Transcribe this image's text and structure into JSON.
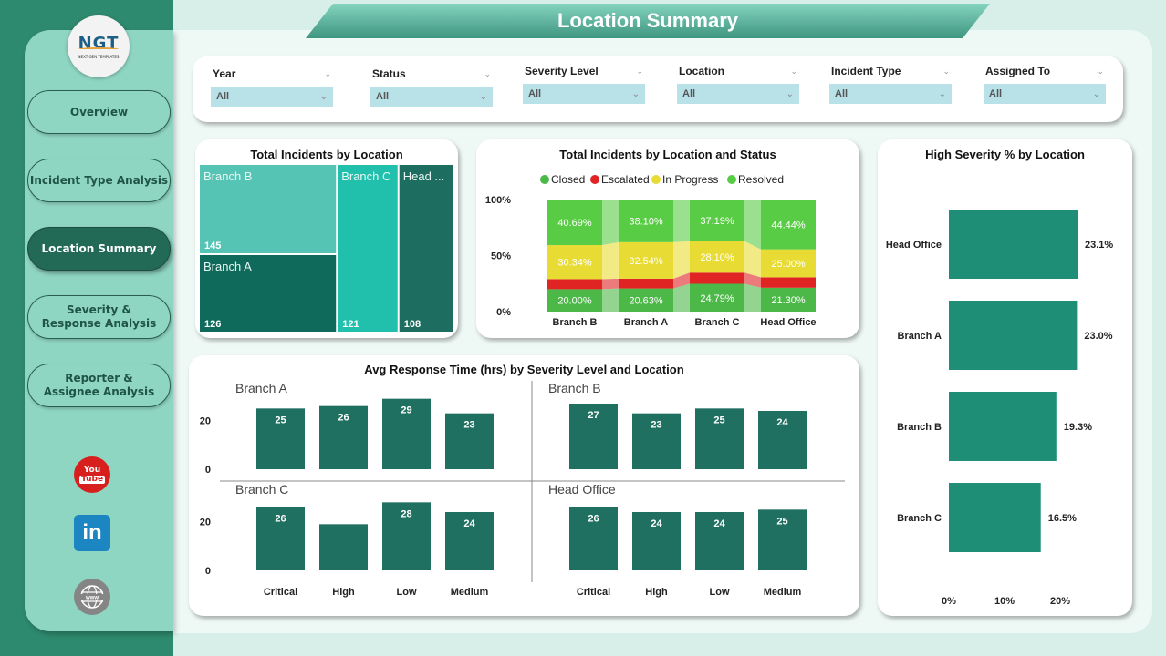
{
  "page": {
    "title": "Location Summary"
  },
  "logo": {
    "mark": "NGT",
    "tagline": "NEXT GEN TEMPLATES"
  },
  "nav": [
    {
      "label": "Overview",
      "active": false
    },
    {
      "label": "Incident Type Analysis",
      "active": false
    },
    {
      "label": "Location Summary",
      "active": true
    },
    {
      "label": "Severity & Response Analysis",
      "active": false
    },
    {
      "label": "Reporter & Assignee Analysis",
      "active": false
    }
  ],
  "social": [
    {
      "icon": "youtube-icon",
      "top": "You",
      "bottom": "Tube"
    },
    {
      "icon": "linkedin-icon",
      "text": "in"
    },
    {
      "icon": "globe-www-icon",
      "text": "www"
    }
  ],
  "filters": [
    {
      "label": "Year",
      "value": "All"
    },
    {
      "label": "Status",
      "value": "All"
    },
    {
      "label": "Severity Level",
      "value": "All"
    },
    {
      "label": "Location",
      "value": "All"
    },
    {
      "label": "Incident Type",
      "value": "All"
    },
    {
      "label": "Assigned To",
      "value": "All"
    }
  ],
  "colors": {
    "teal_dark": "#226a55",
    "bar_teal": "#1f7060",
    "hbar_teal": "#1e8f76",
    "closed": "#4cb848",
    "escalated": "#e02424",
    "in_progress": "#e8dc34",
    "resolved": "#58cc44"
  },
  "chart_data": [
    {
      "id": "treemap",
      "type": "treemap",
      "title": "Total Incidents by Location",
      "items": [
        {
          "label": "Branch B",
          "value": 145,
          "color": "#55c4b4"
        },
        {
          "label": "Branch A",
          "value": 126,
          "color": "#0f6a5c"
        },
        {
          "label": "Branch C",
          "value": 121,
          "color": "#20c0ac"
        },
        {
          "label": "Head ...",
          "full_label": "Head Office",
          "value": 108,
          "color": "#1d6d60"
        }
      ]
    },
    {
      "id": "stacked",
      "type": "bar",
      "stacked": "100%",
      "title": "Total Incidents by Location and Status",
      "legend": [
        "Closed",
        "Escalated",
        "In Progress",
        "Resolved"
      ],
      "legend_position": "top",
      "categories": [
        "Branch B",
        "Branch A",
        "Branch C",
        "Head Office"
      ],
      "series": [
        {
          "name": "Closed",
          "values": [
            20.0,
            20.63,
            24.79,
            21.3
          ],
          "labels": [
            "20.00%",
            "20.63%",
            "24.79%",
            "21.30%"
          ]
        },
        {
          "name": "Escalated",
          "values": [
            8.97,
            8.73,
            9.92,
            9.26
          ],
          "labels": [
            "",
            "",
            "",
            ""
          ]
        },
        {
          "name": "In Progress",
          "values": [
            30.34,
            32.54,
            28.1,
            25.0
          ],
          "labels": [
            "30.34%",
            "32.54%",
            "28.10%",
            "25.00%"
          ]
        },
        {
          "name": "Resolved",
          "values": [
            40.69,
            38.1,
            37.19,
            44.44
          ],
          "labels": [
            "40.69%",
            "38.10%",
            "37.19%",
            "44.44%"
          ]
        }
      ],
      "yticks": [
        "0%",
        "50%",
        "100%"
      ],
      "ylim": [
        0,
        100
      ]
    },
    {
      "id": "small_multiples",
      "type": "bar",
      "title": "Avg Response Time (hrs) by Severity Level and Location",
      "categories": [
        "Critical",
        "High",
        "Low",
        "Medium"
      ],
      "yticks": [
        "0",
        "20"
      ],
      "ylim": [
        0,
        30
      ],
      "panels": [
        {
          "name": "Branch A",
          "values": [
            25,
            26,
            29,
            23
          ],
          "labels": [
            "25",
            "26",
            "29",
            "23"
          ]
        },
        {
          "name": "Branch B",
          "values": [
            27,
            23,
            25,
            24
          ],
          "labels": [
            "27",
            "23",
            "25",
            "24"
          ]
        },
        {
          "name": "Branch C",
          "values": [
            26,
            19,
            28,
            24
          ],
          "labels": [
            "26",
            "",
            "28",
            "24"
          ]
        },
        {
          "name": "Head Office",
          "values": [
            26,
            24,
            24,
            25
          ],
          "labels": [
            "26",
            "24",
            "24",
            "25"
          ]
        }
      ]
    },
    {
      "id": "hbar",
      "type": "bar",
      "orientation": "horizontal",
      "title": "High Severity % by Location",
      "categories": [
        "Head Office",
        "Branch A",
        "Branch B",
        "Branch C"
      ],
      "values": [
        23.1,
        23.0,
        19.3,
        16.5
      ],
      "labels": [
        "23.1%",
        "23.0%",
        "19.3%",
        "16.5%"
      ],
      "xticks": [
        "0%",
        "10%",
        "20%"
      ],
      "xlim": [
        0,
        23.1
      ]
    }
  ]
}
